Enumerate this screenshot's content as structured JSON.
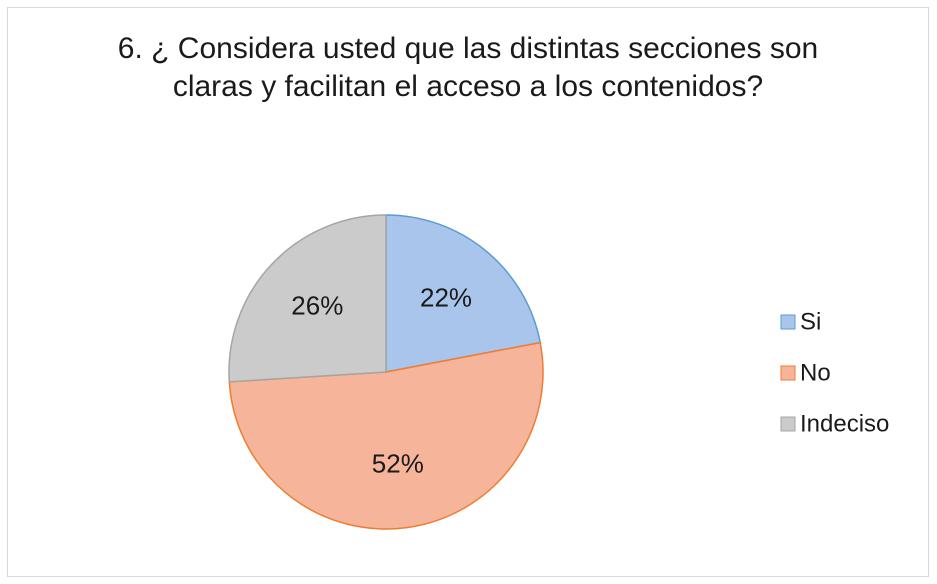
{
  "chart_data": {
    "type": "pie",
    "title": "6. ¿ Considera usted que las distintas secciones son claras y facilitan el acceso a los contenidos?",
    "categories": [
      "Si",
      "No",
      "Indeciso"
    ],
    "values": [
      22,
      52,
      26
    ],
    "value_labels": [
      "22%",
      "52%",
      "26%"
    ],
    "colors": [
      "#a9c5ec",
      "#f6b59a",
      "#cbcbcb"
    ],
    "edge_colors": [
      "#5b9bd5",
      "#ed7d31",
      "#a5a5a5"
    ],
    "legend": "right"
  }
}
